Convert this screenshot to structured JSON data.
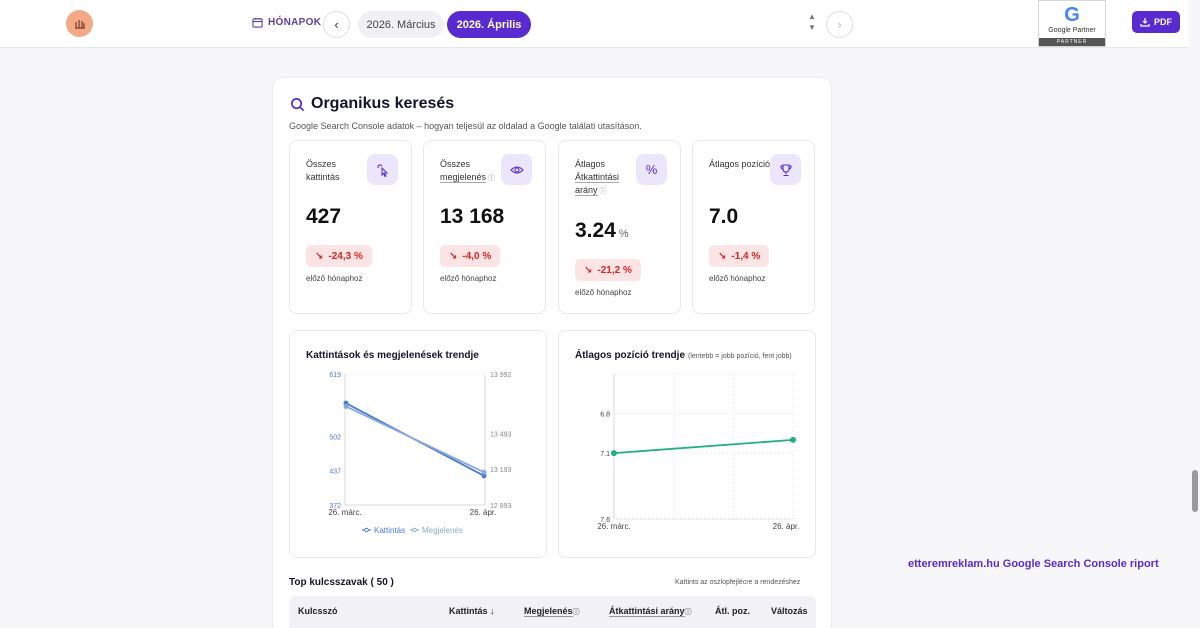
{
  "topbar": {
    "months_label": "HÓNAPOK",
    "month_prev": "2026. Március",
    "month_current": "2026. Április",
    "partner_brand": "Google Partner",
    "partner_tag": "PARTNER",
    "pdf_label": "PDF"
  },
  "section": {
    "title": "Organikus keresés",
    "subtitle": "Google Search Console adatok – hogyan teljesül az oldalad a Google találati utasításon."
  },
  "stats": [
    {
      "label": "Összes kattintás",
      "value": "427",
      "unit": "",
      "change": "-24,3 %",
      "note": "előző hónaphoz",
      "icon": "cursor-click-icon"
    },
    {
      "label_pre": "Összes",
      "label_underlined": "megjelenés",
      "value": "13 168",
      "unit": "",
      "change": "-4,0 %",
      "note": "előző hónaphoz",
      "icon": "eye-icon"
    },
    {
      "label_pre": "Átlagos",
      "label_underlined": "Átkattintási arány",
      "value": "3.24",
      "unit": "%",
      "change": "-21,2 %",
      "note": "előző hónaphoz",
      "icon": "percent-icon"
    },
    {
      "label": "Átlagos pozíció",
      "value": "7.0",
      "unit": "",
      "change": "-1,4 %",
      "note": "előző hónaphoz",
      "icon": "trophy-icon"
    }
  ],
  "chart_data": [
    {
      "type": "line",
      "title": "Kattintások és megjelenések trendje",
      "categories": [
        "26. márc.",
        "26. ápr."
      ],
      "series": [
        {
          "name": "Kattintás",
          "axis": "left",
          "values": [
            564,
            427
          ],
          "color": "#4a7bd8"
        },
        {
          "name": "Megjelenés",
          "axis": "right",
          "values": [
            13720,
            13168
          ],
          "color": "#8aa9d8"
        }
      ],
      "left_ticks": [
        "619",
        "502",
        "437",
        "372"
      ],
      "right_ticks": [
        "13 992",
        "13 493",
        "13 193",
        "12 893"
      ],
      "ylim_left": [
        372,
        619
      ],
      "ylim_right": [
        12893,
        13992
      ]
    },
    {
      "type": "line",
      "title": "Átlagos pozíció trendje",
      "subtitle": "(lentebb = jobb pozíció, fent jobb)",
      "categories": [
        "26. márc.",
        "26. ápr."
      ],
      "series": [
        {
          "values": [
            7.1,
            7.0
          ],
          "color": "#22b07d"
        }
      ],
      "y_ticks": [
        "6.8",
        "7.1",
        "7.6"
      ],
      "y_reversed": true,
      "ylim": [
        6.5,
        7.6
      ]
    }
  ],
  "keywords": {
    "title": "Top kulcsszavak ( 50 )",
    "hint": "Kattints az oszlopfejlécre a rendezéshez",
    "columns": {
      "keyword": "Kulcsszó",
      "clicks": "Kattintás",
      "impressions": "Megjelenés",
      "ctr": "Átkattintási arány",
      "position": "Átl. poz.",
      "change": "Változás"
    }
  },
  "footer_brand": "etteremreklam.hu Google Search Console riport"
}
